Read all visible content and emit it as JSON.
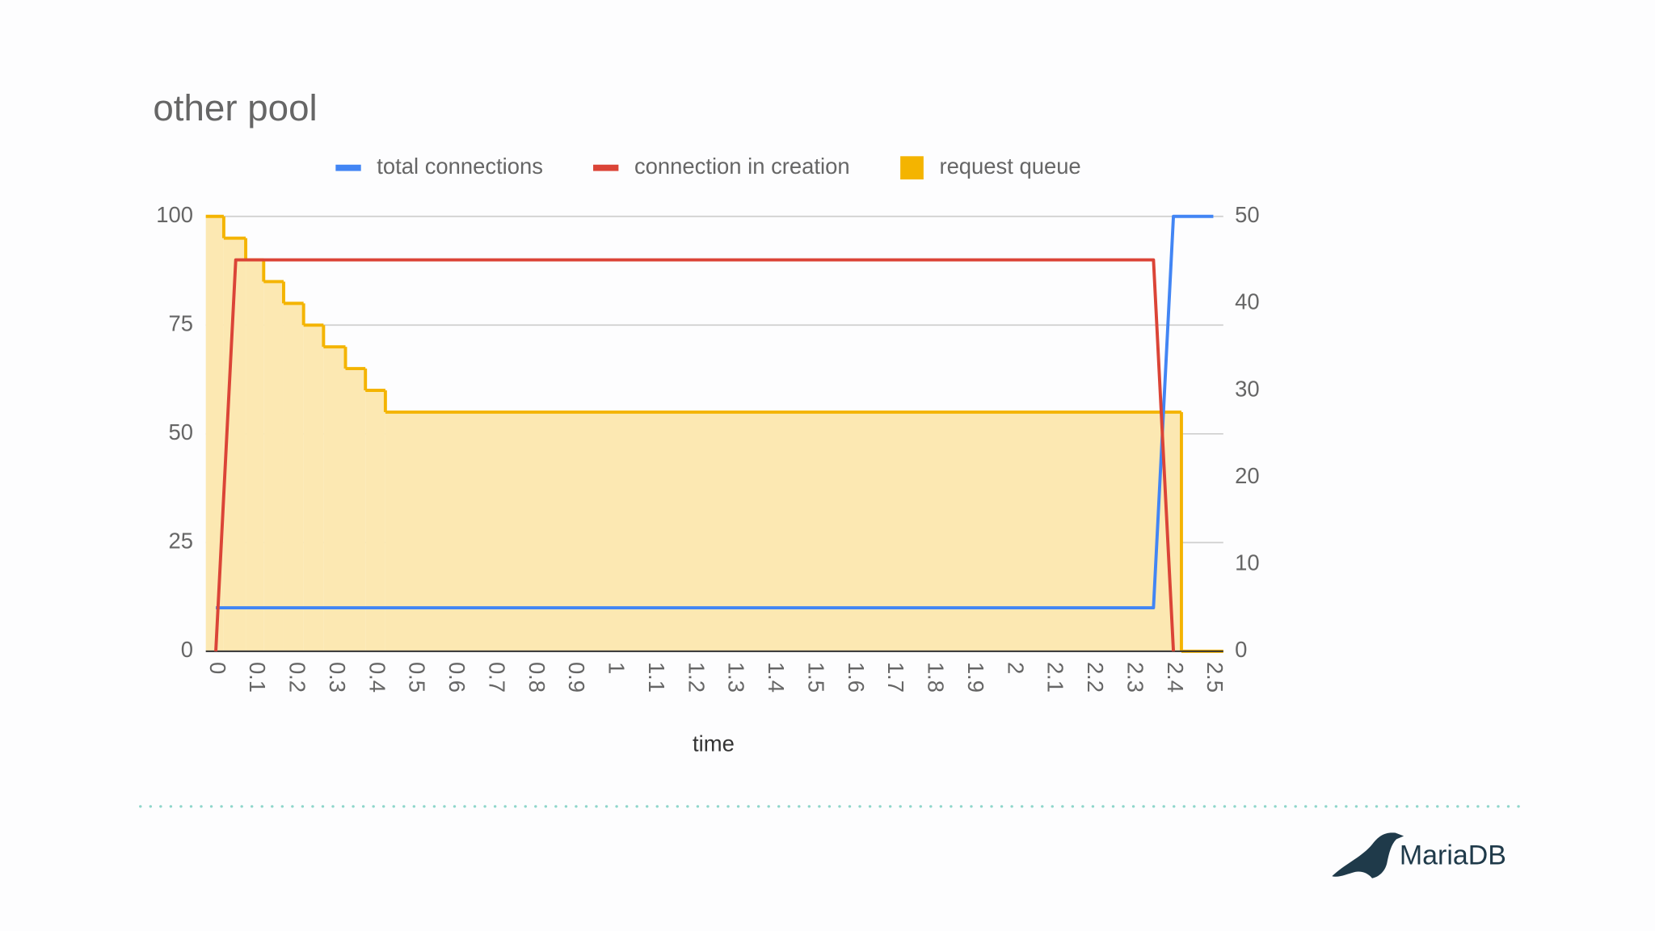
{
  "chart_data": {
    "type": "line",
    "title": "other pool",
    "x_label": "time",
    "xlim": [
      -0.025,
      2.525
    ],
    "xticks": [
      0,
      0.1,
      0.2,
      0.3,
      0.4,
      0.5,
      0.6,
      0.7,
      0.8,
      0.9,
      1,
      1.1,
      1.2,
      1.3,
      1.4,
      1.5,
      1.6,
      1.7,
      1.8,
      1.9,
      2,
      2.1,
      2.2,
      2.3,
      2.4,
      2.5
    ],
    "ylim": [
      0,
      100
    ],
    "yticks": [
      0,
      25,
      50,
      75,
      100
    ],
    "y2lim": [
      0,
      50
    ],
    "y2ticks": [
      0,
      10,
      20,
      30,
      40,
      50
    ],
    "grid": true,
    "legend": "top",
    "series": [
      {
        "name": "total connections",
        "color": "#4285f4",
        "x": [
          0,
          2.35,
          2.4,
          2.5
        ],
        "values": [
          10,
          10,
          100,
          100
        ]
      },
      {
        "name": "connection in creation",
        "color": "#db4437",
        "x": [
          0,
          0.05,
          2.35,
          2.4
        ],
        "values": [
          0,
          90,
          90,
          0
        ]
      },
      {
        "name": "request queue",
        "color": "#f4b400",
        "kind": "stepped-area",
        "x": [
          -0.025,
          0.02,
          0.075,
          0.12,
          0.17,
          0.22,
          0.27,
          0.325,
          0.375,
          0.425,
          2.42,
          2.525
        ],
        "values": [
          100,
          95,
          90,
          85,
          80,
          75,
          70,
          65,
          60,
          55,
          0,
          0
        ]
      }
    ]
  },
  "logo": "MariaDB"
}
